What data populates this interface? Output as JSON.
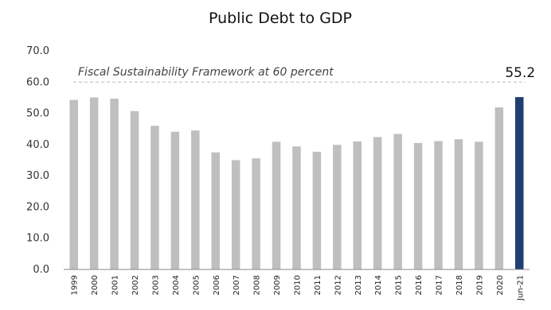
{
  "chart_data": {
    "type": "bar",
    "title": "Public Debt to GDP",
    "categories": [
      "1999",
      "2000",
      "2001",
      "2002",
      "2003",
      "2004",
      "2005",
      "2006",
      "2007",
      "2008",
      "2009",
      "2010",
      "2011",
      "2012",
      "2013",
      "2014",
      "2015",
      "2016",
      "2017",
      "2018",
      "2019",
      "2020",
      "Jun-21"
    ],
    "values": [
      54.3,
      55.1,
      54.7,
      50.7,
      46.0,
      44.1,
      44.5,
      37.5,
      35.0,
      35.6,
      40.9,
      39.4,
      37.7,
      39.9,
      41.0,
      42.4,
      43.4,
      40.5,
      41.1,
      41.7,
      40.9,
      51.9,
      55.2
    ],
    "bar_colors": [
      "#bfbfbf",
      "#bfbfbf",
      "#bfbfbf",
      "#bfbfbf",
      "#bfbfbf",
      "#bfbfbf",
      "#bfbfbf",
      "#bfbfbf",
      "#bfbfbf",
      "#bfbfbf",
      "#bfbfbf",
      "#bfbfbf",
      "#bfbfbf",
      "#bfbfbf",
      "#bfbfbf",
      "#bfbfbf",
      "#bfbfbf",
      "#bfbfbf",
      "#bfbfbf",
      "#bfbfbf",
      "#bfbfbf",
      "#bfbfbf",
      "#1f3f73"
    ],
    "ylim": [
      0,
      70
    ],
    "yticks": [
      "0.0",
      "10.0",
      "20.0",
      "30.0",
      "40.0",
      "50.0",
      "60.0",
      "70.0"
    ],
    "reference_line": {
      "value": 60,
      "label": "Fiscal Sustainability Framework at 60 percent",
      "style": "dashed",
      "color": "#bbbbbb"
    },
    "data_labels": [
      {
        "index": 22,
        "text": "55.2"
      }
    ],
    "grid": false,
    "legend": "none"
  }
}
